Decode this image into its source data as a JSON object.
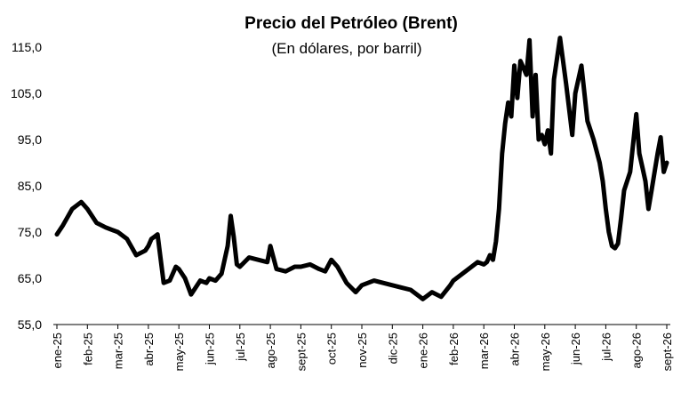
{
  "chart_data": {
    "type": "line",
    "title": "Precio del Petróleo (Brent)",
    "subtitle": "(En dólares, por barril)",
    "xlabel": "",
    "ylabel": "",
    "ylim": [
      55,
      118
    ],
    "yticks": [
      55,
      65,
      75,
      85,
      95,
      105,
      115
    ],
    "ytick_labels": [
      "55,0",
      "65,0",
      "75,0",
      "85,0",
      "95,0",
      "105,0",
      "115,0"
    ],
    "xtick_labels": [
      "ene-25",
      "feb-25",
      "mar-25",
      "abr-25",
      "may-25",
      "jun-25",
      "jul-25",
      "ago-25",
      "sept-25",
      "oct-25",
      "nov-25",
      "dic-25",
      "ene-26",
      "feb-26",
      "mar-26",
      "abr-26",
      "may-26",
      "jun-26",
      "jul-26",
      "ago-26",
      "sept-26"
    ],
    "grid": false,
    "legend": "none",
    "line_color": "#000000",
    "series": [
      {
        "x": [
          0,
          0.2,
          0.5,
          0.8,
          1.0,
          1.3,
          1.6,
          1.8,
          2.0,
          2.3,
          2.6,
          2.9,
          3.0,
          3.1,
          3.2,
          3.3,
          3.5,
          3.7,
          3.9,
          4.0,
          4.2,
          4.4,
          4.7,
          4.9,
          5.0,
          5.2,
          5.4,
          5.6,
          5.7,
          5.8,
          5.9,
          6.0,
          6.3,
          6.6,
          6.9,
          7.0,
          7.2,
          7.5,
          7.8,
          8.0,
          8.3,
          8.6,
          8.8,
          9.0,
          9.2,
          9.5,
          9.8,
          10.0,
          10.4,
          10.7,
          11.0,
          11.3,
          11.6,
          11.9,
          12.0,
          12.3,
          12.6,
          12.9,
          13.0,
          13.2,
          13.5,
          13.8,
          14.0,
          14.1,
          14.2,
          14.3,
          14.4,
          14.5,
          14.6,
          14.7,
          14.8,
          14.9,
          15.0,
          15.1,
          15.2,
          15.4,
          15.5,
          15.6,
          15.7,
          15.8,
          15.9,
          16.0,
          16.1,
          16.2,
          16.3,
          16.5,
          16.7,
          16.9,
          17.0,
          17.2,
          17.4,
          17.6,
          17.8,
          17.9,
          18.0,
          18.1,
          18.2,
          18.3,
          18.4,
          18.5,
          18.6,
          18.8,
          19.0,
          19.1,
          19.2,
          19.3,
          19.4,
          19.5,
          19.6,
          19.7,
          19.8,
          19.9,
          20.0
        ],
        "values": [
          74.5,
          76.5,
          80.0,
          81.5,
          80.0,
          77.0,
          76.0,
          75.5,
          75.0,
          73.5,
          70.0,
          71.0,
          72.0,
          73.5,
          74.0,
          74.5,
          64.0,
          64.5,
          67.5,
          67.0,
          65.0,
          61.5,
          64.5,
          64.0,
          65.0,
          64.5,
          66.0,
          72.0,
          78.5,
          74.0,
          68.0,
          67.5,
          69.5,
          69.0,
          68.5,
          72.0,
          67.0,
          66.5,
          67.5,
          67.5,
          68.0,
          67.0,
          66.5,
          69.0,
          67.5,
          64.0,
          62.0,
          63.5,
          64.5,
          64.0,
          63.5,
          63.0,
          62.5,
          61.0,
          60.5,
          62.0,
          61.0,
          63.5,
          64.5,
          65.5,
          67.0,
          68.5,
          68.0,
          68.5,
          70.0,
          69.0,
          73.0,
          80.0,
          92.0,
          98.5,
          103.0,
          100.0,
          111.0,
          104.0,
          112.0,
          109.0,
          116.5,
          100.0,
          109.0,
          95.0,
          96.0,
          94.0,
          97.0,
          92.0,
          108.0,
          117.0,
          107.0,
          96.0,
          105.0,
          111.0,
          99.0,
          95.0,
          90.0,
          86.0,
          80.0,
          75.0,
          72.0,
          71.5,
          72.5,
          78.0,
          84.0,
          88.0,
          100.5,
          92.0,
          89.0,
          86.0,
          80.0,
          84.0,
          88.0,
          92.0,
          95.5,
          88.0,
          90.0
        ]
      }
    ]
  }
}
